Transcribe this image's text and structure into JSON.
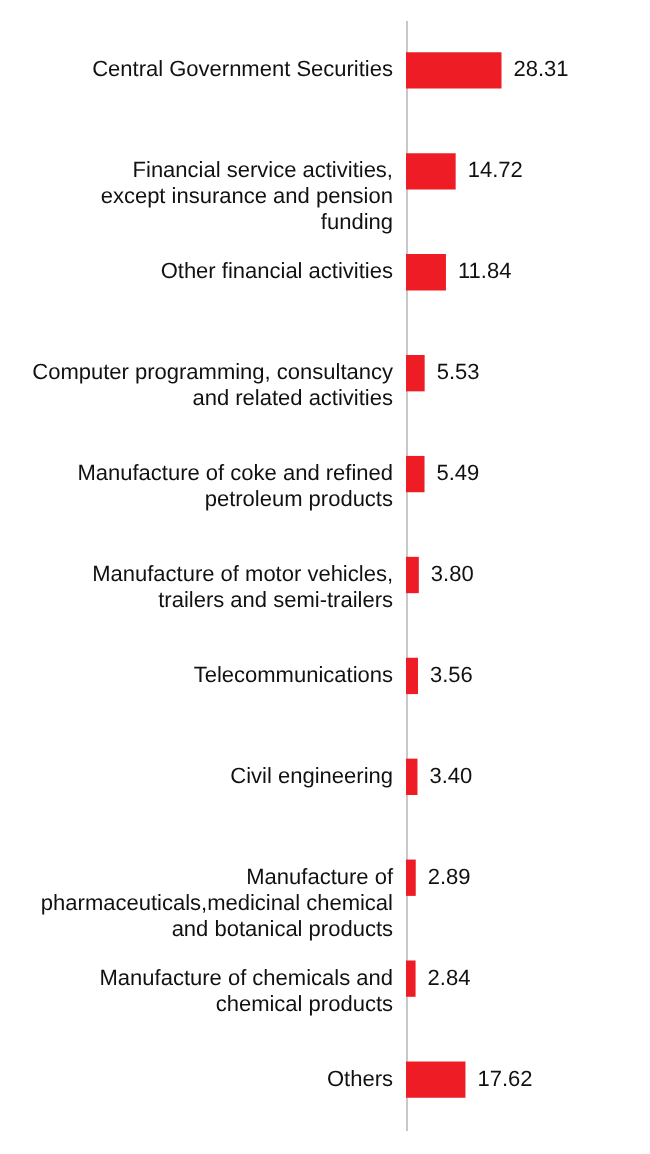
{
  "chart_data": {
    "type": "bar",
    "orientation": "horizontal",
    "categories": [
      "Central Government Securities",
      "Financial service activities, except insurance and pension funding",
      "Other financial activities",
      "Computer programming, consultancy and related activities",
      "Manufacture of coke and refined petroleum products",
      "Manufacture of motor vehicles, trailers and semi-trailers",
      "Telecommunications",
      "Civil engineering",
      "Manufacture of pharmaceuticals,medicinal chemical and botanical products",
      "Manufacture of chemicals and chemical products",
      "Others"
    ],
    "values": [
      28.31,
      14.72,
      11.84,
      5.53,
      5.49,
      3.8,
      3.56,
      3.4,
      2.89,
      2.84,
      17.62
    ],
    "value_labels": [
      "28.31",
      "14.72",
      "11.84",
      "5.53",
      "5.49",
      "3.80",
      "3.56",
      "3.40",
      "2.89",
      "2.84",
      "17.62"
    ],
    "color": "#ee1c25"
  }
}
